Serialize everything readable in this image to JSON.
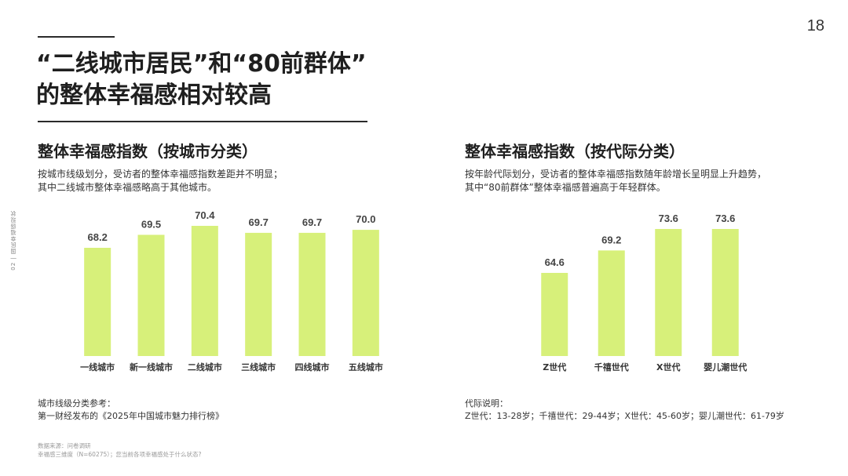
{
  "page": {
    "number": "18",
    "side_label": "02 | 国民幸福感现状"
  },
  "headline": {
    "line1": "“二线城市居民”和“80前群体”",
    "line2": "的整体幸福感相对较高"
  },
  "left_panel": {
    "title": "整体幸福感指数（按城市分类）",
    "desc1": "按城市线级划分，受访者的整体幸福感指数差距并不明显；",
    "desc2": "其中二线城市整体幸福感略高于其他城市。",
    "note1": "城市线级分类参考：",
    "note2": "第一财经发布的《2025年中国城市魅力排行榜》"
  },
  "right_panel": {
    "title": "整体幸福感指数（按代际分类）",
    "desc1": "按年龄代际划分，受访者的整体幸福感指数随年龄增长呈明显上升趋势，",
    "desc2": "其中“80前群体”整体幸福感普遍高于年轻群体。",
    "note1": "代际说明：",
    "note2": "Z世代：13-28岁；千禧世代：29-44岁；X世代：45-60岁；婴儿潮世代：61-79岁"
  },
  "source": {
    "line1": "数据来源：问卷调研",
    "line2": "幸福感三维度（N=60275）；您当前各项幸福感处于什么状态?"
  },
  "colors": {
    "bar": "#d7f07a",
    "text": "#1f1f1f"
  },
  "chart_data": [
    {
      "type": "bar",
      "title": "整体幸福感指数（按城市分类）",
      "categories": [
        "一线城市",
        "新一线城市",
        "二线城市",
        "三线城市",
        "四线城市",
        "五线城市"
      ],
      "values": [
        68.2,
        69.5,
        70.4,
        69.7,
        69.7,
        70.0
      ],
      "value_labels": [
        "68.2",
        "69.5",
        "70.4",
        "69.7",
        "69.7",
        "70.0"
      ],
      "xlabel": "",
      "ylabel": "",
      "ylim": [
        0,
        72
      ],
      "grid": false
    },
    {
      "type": "bar",
      "title": "整体幸福感指数（按代际分类）",
      "categories": [
        "Z世代",
        "千禧世代",
        "X世代",
        "婴儿潮世代"
      ],
      "values": [
        64.6,
        69.2,
        73.6,
        73.6
      ],
      "value_labels": [
        "64.6",
        "69.2",
        "73.6",
        "73.6"
      ],
      "xlabel": "",
      "ylabel": "",
      "ylim": [
        0,
        74
      ],
      "grid": false
    }
  ]
}
